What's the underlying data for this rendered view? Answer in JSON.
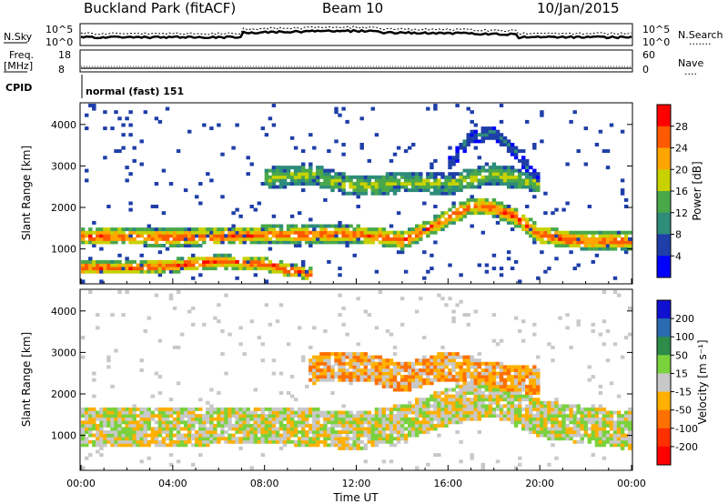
{
  "header": {
    "site": "Buckland Park (fitACF)",
    "beam": "Beam 10",
    "date": "10/Jan/2015"
  },
  "noise_panel": {
    "left_label": "N.Sky",
    "left_ticks": [
      "10^5",
      "10^0"
    ],
    "right_label": "N.Search",
    "right_ticks": [
      "10^5",
      "10^0"
    ],
    "right_legend": "......."
  },
  "freq_panel": {
    "left_label": "Freq.",
    "left_unit": "[MHz]",
    "left_ticks": [
      "18",
      "8"
    ],
    "right_label": "Nave",
    "right_ticks": [
      "60",
      "0"
    ],
    "right_legend": "...."
  },
  "cpid_panel": {
    "label": "CPID",
    "mode": "normal (fast) 151"
  },
  "axes": {
    "xlabel": "Time UT",
    "x_ticks": [
      "00:00",
      "04:00",
      "08:00",
      "12:00",
      "16:00",
      "20:00",
      "00:00"
    ],
    "ylabel": "Slant Range [km]",
    "y_ticks": [
      "1000",
      "2000",
      "3000",
      "4000"
    ]
  },
  "colorbars": {
    "power": {
      "title": "Power [dB]",
      "labels": [
        "28",
        "24",
        "20",
        "16",
        "12",
        "8",
        "4"
      ],
      "colors": [
        "#ff0000",
        "#ff5a00",
        "#ffa500",
        "#c8d200",
        "#4aa84a",
        "#2e8c7a",
        "#1e3ea8",
        "#0000ff"
      ]
    },
    "velocity": {
      "title": "Velocity [m s⁻¹]",
      "labels": [
        "200",
        "100",
        "50",
        "15",
        "-15",
        "-50",
        "-100",
        "-200"
      ],
      "colors": [
        "#1010d0",
        "#2a6ab0",
        "#2e8c4a",
        "#7ad23c",
        "#c8c8c8",
        "#ffb000",
        "#ff7000",
        "#ff3000",
        "#ff0000"
      ]
    }
  },
  "chart_data": [
    {
      "type": "heatmap",
      "title": "Power [dB]",
      "xlabel": "Time UT",
      "ylabel": "Slant Range [km]",
      "xlim": [
        "00:00",
        "24:00"
      ],
      "ylim": [
        180,
        4500
      ],
      "x_ticks": [
        "00:00",
        "04:00",
        "08:00",
        "12:00",
        "16:00",
        "20:00",
        "00:00"
      ],
      "y_ticks": [
        1000,
        2000,
        3000,
        4000
      ],
      "colorbar_range": [
        0,
        32
      ],
      "bands": [
        {
          "name": "main",
          "points": [
            [
              0,
              1300
            ],
            [
              2,
              1300
            ],
            [
              4,
              1280
            ],
            [
              6,
              1300
            ],
            [
              8,
              1350
            ],
            [
              10,
              1350
            ],
            [
              12,
              1350
            ],
            [
              13,
              1300
            ],
            [
              14,
              1200
            ],
            [
              15,
              1450
            ],
            [
              16,
              1750
            ],
            [
              17,
              2050
            ],
            [
              18,
              2000
            ],
            [
              19,
              1750
            ],
            [
              20,
              1350
            ],
            [
              21,
              1250
            ],
            [
              22,
              1200
            ],
            [
              24,
              1200
            ]
          ],
          "width": 420,
          "value": 27
        },
        {
          "name": "low",
          "points": [
            [
              0,
              550
            ],
            [
              2,
              550
            ],
            [
              4,
              600
            ],
            [
              6,
              700
            ],
            [
              8,
              650
            ],
            [
              9,
              500
            ],
            [
              10,
              400
            ]
          ],
          "width": 320,
          "value": 28
        },
        {
          "name": "upper",
          "points": [
            [
              8,
              2700
            ],
            [
              10,
              2800
            ],
            [
              12,
              2500
            ],
            [
              14,
              2600
            ],
            [
              15,
              2600
            ],
            [
              16,
              2550
            ],
            [
              17,
              2700
            ],
            [
              18,
              2800
            ],
            [
              20,
              2600
            ]
          ],
          "width": 500,
          "value": 17
        },
        {
          "name": "arc",
          "points": [
            [
              16,
              3000
            ],
            [
              17,
              3700
            ],
            [
              18,
              3800
            ],
            [
              19,
              3300
            ],
            [
              20,
              2600
            ]
          ],
          "width": 320,
          "value": 8
        }
      ]
    },
    {
      "type": "heatmap",
      "title": "Velocity [m s⁻¹]",
      "xlabel": "Time UT",
      "ylabel": "Slant Range [km]",
      "xlim": [
        "00:00",
        "24:00"
      ],
      "ylim": [
        180,
        4500
      ],
      "x_ticks": [
        "00:00",
        "04:00",
        "08:00",
        "12:00",
        "16:00",
        "20:00",
        "00:00"
      ],
      "y_ticks": [
        1000,
        2000,
        3000,
        4000
      ],
      "colorbar_range": [
        -200,
        200
      ],
      "bands": [
        {
          "name": "ground",
          "points": [
            [
              0,
              1200
            ],
            [
              4,
              1200
            ],
            [
              8,
              1250
            ],
            [
              10,
              1200
            ],
            [
              12,
              1100
            ],
            [
              14,
              1300
            ],
            [
              16,
              1700
            ],
            [
              18,
              1900
            ],
            [
              20,
              1400
            ],
            [
              24,
              1100
            ]
          ],
          "width": 900,
          "value": 0
        },
        {
          "name": "ionospheric",
          "points": [
            [
              10,
              2600
            ],
            [
              12,
              2700
            ],
            [
              14,
              2400
            ],
            [
              16,
              2700
            ],
            [
              18,
              2400
            ],
            [
              20,
              2300
            ]
          ],
          "width": 700,
          "value": -40
        }
      ]
    }
  ]
}
